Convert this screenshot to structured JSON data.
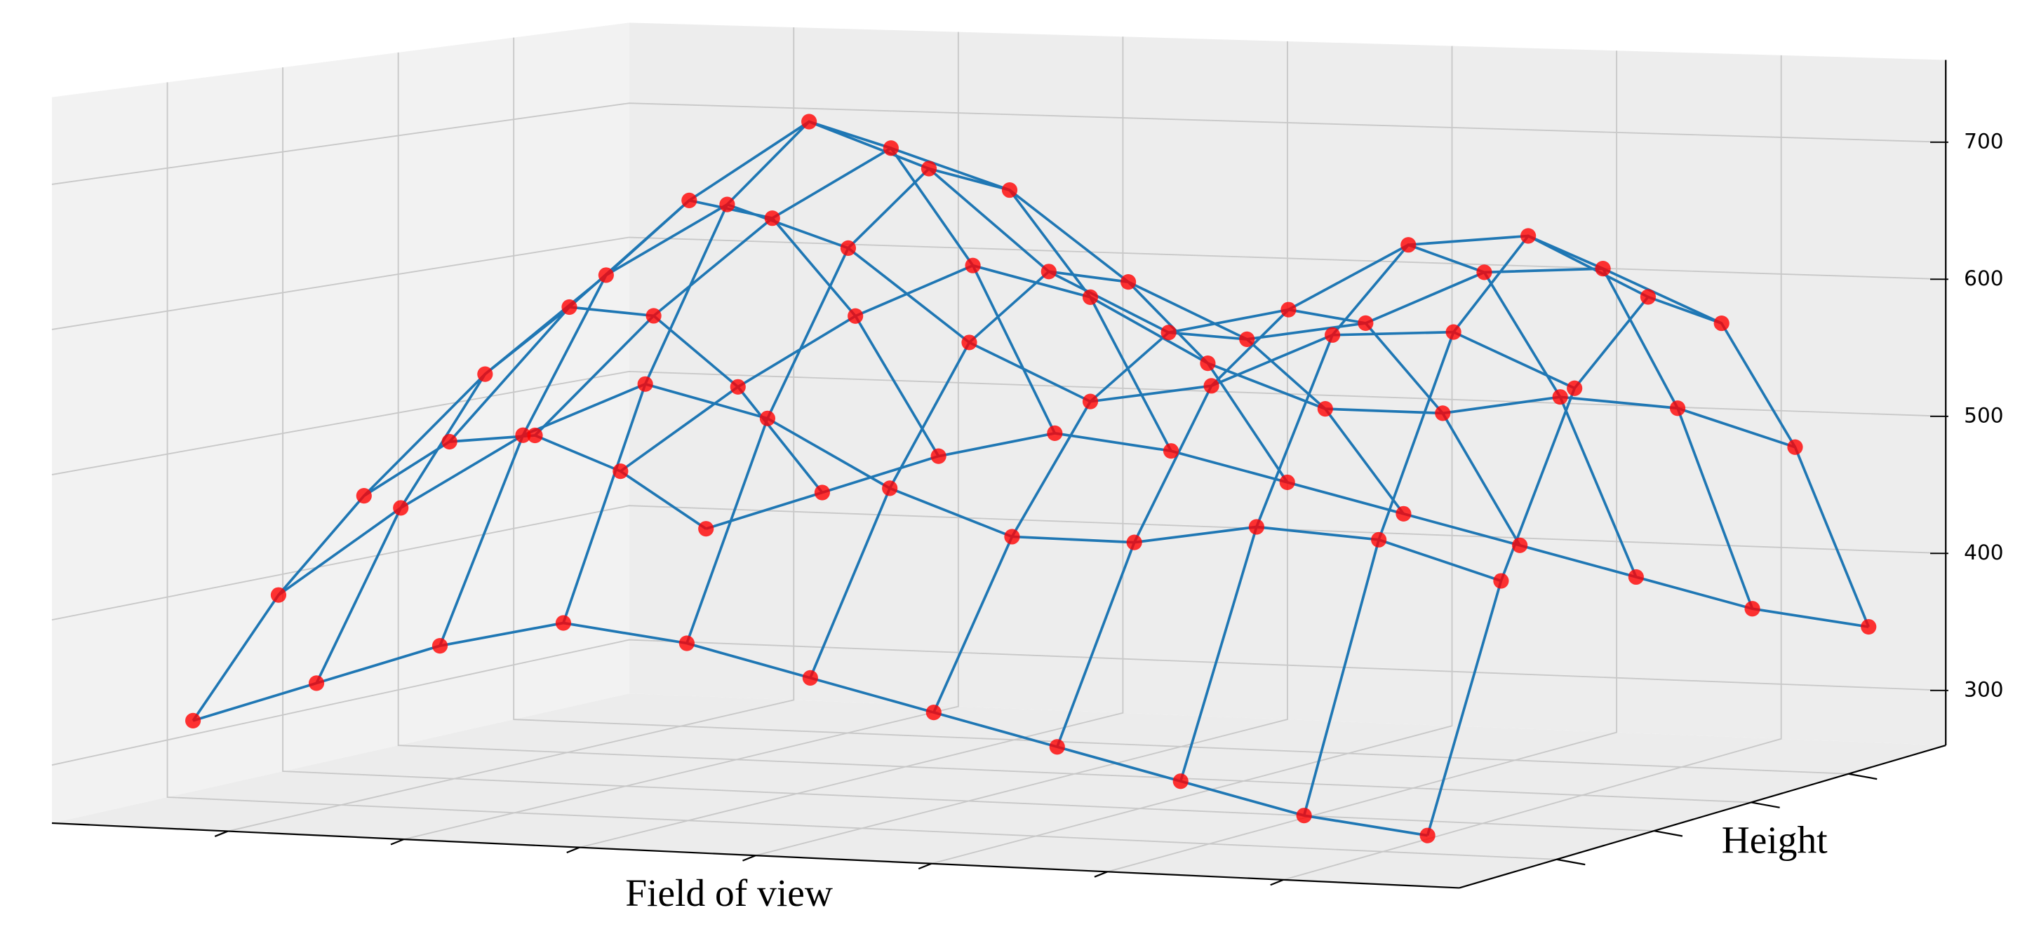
{
  "chart_data": {
    "type": "surface3d",
    "xlabel": "Field of view",
    "ylabel": "Height",
    "z": [
      [
        330,
        360,
        390,
        410,
        400,
        380,
        360,
        340,
        320,
        300,
        290
      ],
      [
        405,
        470,
        525,
        565,
        545,
        500,
        470,
        470,
        485,
        480,
        455
      ],
      [
        463,
        553,
        627,
        681,
        654,
        591,
        553,
        568,
        608,
        614,
        578
      ],
      [
        490,
        590,
        670,
        730,
        700,
        630,
        590,
        610,
        660,
        670,
        630
      ],
      [
        483,
        573,
        647,
        701,
        674,
        611,
        573,
        588,
        628,
        634,
        598
      ],
      [
        445,
        510,
        565,
        605,
        585,
        540,
        510,
        510,
        525,
        520,
        495
      ],
      [
        390,
        420,
        450,
        470,
        460,
        440,
        420,
        400,
        380,
        360,
        350
      ]
    ],
    "zlim": [
      260,
      760
    ],
    "zticks": [
      300,
      400,
      500,
      600,
      700
    ],
    "surface_color": "#1f77b4",
    "point_color": "#ff0000",
    "grid": true
  }
}
